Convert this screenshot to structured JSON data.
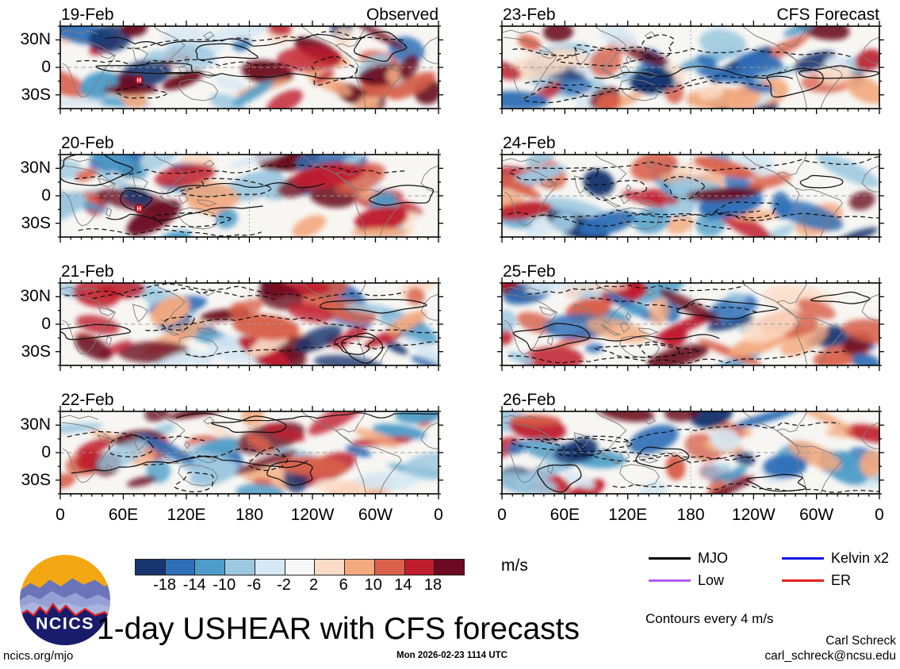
{
  "chart_data": {
    "type": "heatmap",
    "title": "1-day USHEAR with CFS forecasts",
    "description": "Eight global tropical-strip maps of 1-day zonal wind shear anomalies; left column observed, right column CFS forecast, with wave contours overlaid",
    "panel_grid": {
      "rows": 4,
      "cols": 2
    },
    "panels": [
      {
        "date": "19-Feb",
        "source": "Observed",
        "column_header": "Observed",
        "tc_symbol": true
      },
      {
        "date": "20-Feb",
        "source": "Observed",
        "tc_symbol": true
      },
      {
        "date": "21-Feb",
        "source": "Observed",
        "tc_symbol": false
      },
      {
        "date": "22-Feb",
        "source": "Observed",
        "tc_symbol": false
      },
      {
        "date": "23-Feb",
        "source": "CFS Forecast",
        "column_header": "CFS Forecast",
        "tc_symbol": false
      },
      {
        "date": "24-Feb",
        "source": "CFS Forecast",
        "tc_symbol": false
      },
      {
        "date": "25-Feb",
        "source": "CFS Forecast",
        "tc_symbol": false
      },
      {
        "date": "26-Feb",
        "source": "CFS Forecast",
        "tc_symbol": false
      }
    ],
    "x_axis": {
      "tick_labels": [
        "0",
        "60E",
        "120E",
        "180",
        "120W",
        "60W",
        "0"
      ]
    },
    "y_axis": {
      "tick_labels": [
        "30N",
        "0",
        "30S"
      ]
    },
    "colorbar": {
      "units": "m/s",
      "tick_labels": [
        "-18",
        "-14",
        "-10",
        "-6",
        "-2",
        "2",
        "6",
        "10",
        "14",
        "18"
      ],
      "levels": [
        -18,
        -14,
        -10,
        -6,
        -2,
        2,
        6,
        10,
        14,
        18
      ],
      "colors": [
        "#17356f",
        "#2f6fb7",
        "#4e9dc8",
        "#9cc8e0",
        "#d6e8f3",
        "#f7f7f7",
        "#fbdcc6",
        "#f3a97e",
        "#d9604a",
        "#c01d2e",
        "#6b0a20"
      ]
    },
    "legend": {
      "items": [
        {
          "label": "MJO",
          "color": "#000000"
        },
        {
          "label": "Low",
          "color": "#b05df0"
        },
        {
          "label": "Kelvin x2",
          "color": "#1414e6"
        },
        {
          "label": "ER",
          "color": "#e62319"
        }
      ],
      "note": "Contours every 4 m/s",
      "contour_interval_m_s": 4
    }
  },
  "footer": {
    "title": "1-day USHEAR with CFS forecasts",
    "url": "ncics.org/mjo",
    "timestamp": "Mon 2026-02-23 1114 UTC",
    "author": "Carl Schreck",
    "email": "carl_schreck@ncsu.edu",
    "logo_text": "NCICS"
  }
}
